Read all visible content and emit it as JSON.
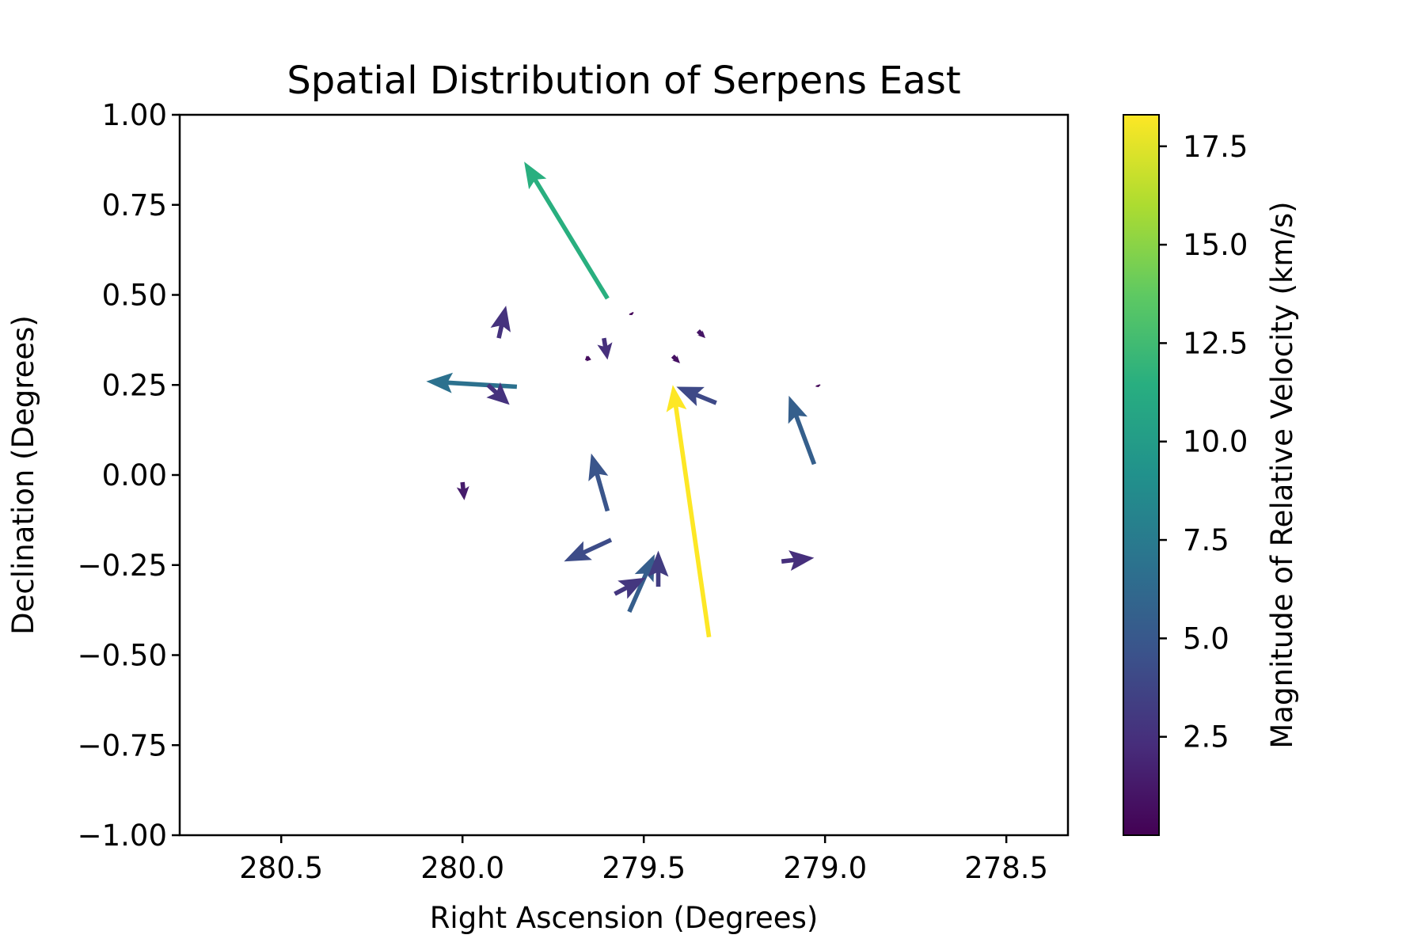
{
  "chart_data": {
    "type": "quiver",
    "title": "Spatial Distribution of Serpens East",
    "xlabel": "Right Ascension (Degrees)",
    "ylabel": "Declination (Degrees)",
    "x_inverted": true,
    "xlim": [
      280.78,
      278.33
    ],
    "ylim": [
      -1.0,
      1.0
    ],
    "x_ticks": [
      280.5,
      280.0,
      279.5,
      279.0,
      278.5
    ],
    "x_tick_labels": [
      "280.5",
      "280.0",
      "279.5",
      "279.0",
      "278.5"
    ],
    "y_ticks": [
      1.0,
      0.75,
      0.5,
      0.25,
      0.0,
      -0.25,
      -0.5,
      -0.75,
      -1.0
    ],
    "y_tick_labels": [
      "1.00",
      "0.75",
      "0.50",
      "0.25",
      "0.00",
      "−0.25",
      "−0.50",
      "−0.75",
      "−1.00"
    ],
    "grid": false,
    "colorbar": {
      "label": "Magnitude of Relative Velocity (km/s)",
      "colormap": "viridis",
      "range": [
        0.0,
        18.3
      ],
      "ticks": [
        2.5,
        5.0,
        7.5,
        10.0,
        12.5,
        15.0,
        17.5
      ],
      "tick_labels": [
        "2.5",
        "5.0",
        "7.5",
        "10.0",
        "12.5",
        "15.0",
        "17.5"
      ]
    },
    "vectors": [
      {
        "x": 279.6,
        "y": 0.49,
        "x_end": 279.83,
        "y_end": 0.87,
        "magnitude": 11.5
      },
      {
        "x": 279.32,
        "y": -0.45,
        "x_end": 279.42,
        "y_end": 0.25,
        "magnitude": 18.3
      },
      {
        "x": 279.85,
        "y": 0.245,
        "x_end": 280.1,
        "y_end": 0.26,
        "magnitude": 6.8
      },
      {
        "x": 279.03,
        "y": 0.03,
        "x_end": 279.1,
        "y_end": 0.22,
        "magnitude": 5.5
      },
      {
        "x": 279.3,
        "y": 0.2,
        "x_end": 279.41,
        "y_end": 0.245,
        "magnitude": 4.0
      },
      {
        "x": 279.6,
        "y": -0.1,
        "x_end": 279.645,
        "y_end": 0.06,
        "magnitude": 4.8
      },
      {
        "x": 279.54,
        "y": -0.38,
        "x_end": 279.47,
        "y_end": -0.22,
        "magnitude": 5.4
      },
      {
        "x": 279.59,
        "y": -0.18,
        "x_end": 279.72,
        "y_end": -0.24,
        "magnitude": 4.2
      },
      {
        "x": 279.12,
        "y": -0.24,
        "x_end": 279.03,
        "y_end": -0.23,
        "magnitude": 2.4
      },
      {
        "x": 279.58,
        "y": -0.33,
        "x_end": 279.495,
        "y_end": -0.285,
        "magnitude": 2.9
      },
      {
        "x": 279.46,
        "y": -0.31,
        "x_end": 279.46,
        "y_end": -0.21,
        "magnitude": 3.2
      },
      {
        "x": 279.9,
        "y": 0.38,
        "x_end": 279.88,
        "y_end": 0.47,
        "magnitude": 2.6
      },
      {
        "x": 279.93,
        "y": 0.25,
        "x_end": 279.87,
        "y_end": 0.195,
        "magnitude": 2.6
      },
      {
        "x": 279.61,
        "y": 0.38,
        "x_end": 279.6,
        "y_end": 0.32,
        "magnitude": 2.5
      },
      {
        "x": 280.0,
        "y": -0.02,
        "x_end": 279.995,
        "y_end": -0.07,
        "magnitude": 1.4
      },
      {
        "x": 279.35,
        "y": 0.4,
        "x_end": 279.33,
        "y_end": 0.38,
        "magnitude": 1.0
      },
      {
        "x": 279.42,
        "y": 0.33,
        "x_end": 279.4,
        "y_end": 0.31,
        "magnitude": 0.8
      },
      {
        "x": 279.66,
        "y": 0.325,
        "x_end": 279.645,
        "y_end": 0.32,
        "magnitude": 0.6
      },
      {
        "x": 279.535,
        "y": 0.45,
        "x_end": 279.532,
        "y_end": 0.444,
        "magnitude": 0.3
      },
      {
        "x": 279.02,
        "y": 0.25,
        "x_end": 279.018,
        "y_end": 0.244,
        "magnitude": 0.3
      }
    ]
  }
}
